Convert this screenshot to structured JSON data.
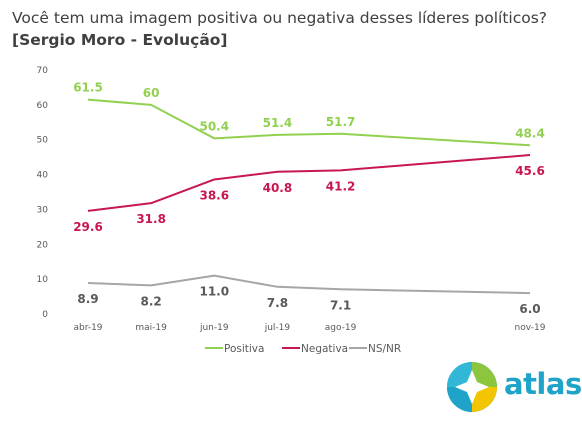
{
  "title": "Você tem uma imagem positiva ou negativa desses líderes políticos?",
  "subtitle": "[Sergio Moro - Evolução]",
  "logo_text": "atlas",
  "chart_data": {
    "type": "line",
    "categories": [
      "abr-19",
      "mai-19",
      "jun-19",
      "jul-19",
      "ago-19",
      "nov-19"
    ],
    "x_dates": [
      "2019-04",
      "2019-05",
      "2019-06",
      "2019-07",
      "2019-08",
      "2019-11"
    ],
    "ylim": [
      0,
      70
    ],
    "yticks": [
      0,
      10,
      20,
      30,
      40,
      50,
      60,
      70
    ],
    "grid": false,
    "legend_position": "bottom",
    "series": [
      {
        "name": "Positiva",
        "color": "#92d050",
        "values": [
          61.5,
          60,
          50.4,
          51.4,
          51.7,
          48.4
        ],
        "labels": [
          "61.5",
          "60",
          "50.4",
          "51.4",
          "51.7",
          "48.4"
        ]
      },
      {
        "name": "Negativa",
        "color": "#c8174f",
        "values": [
          29.6,
          31.8,
          38.6,
          40.8,
          41.2,
          45.6
        ],
        "labels": [
          "29.6",
          "31.8",
          "38.6",
          "40.8",
          "41.2",
          "45.6"
        ]
      },
      {
        "name": "NS/NR",
        "color": "#a6a6a6",
        "values": [
          8.9,
          8.2,
          11.0,
          7.8,
          7.1,
          6.0
        ],
        "labels": [
          "8.9",
          "8.2",
          "11.0",
          "7.8",
          "7.1",
          "6.0"
        ],
        "label_color": "#595959"
      }
    ]
  }
}
